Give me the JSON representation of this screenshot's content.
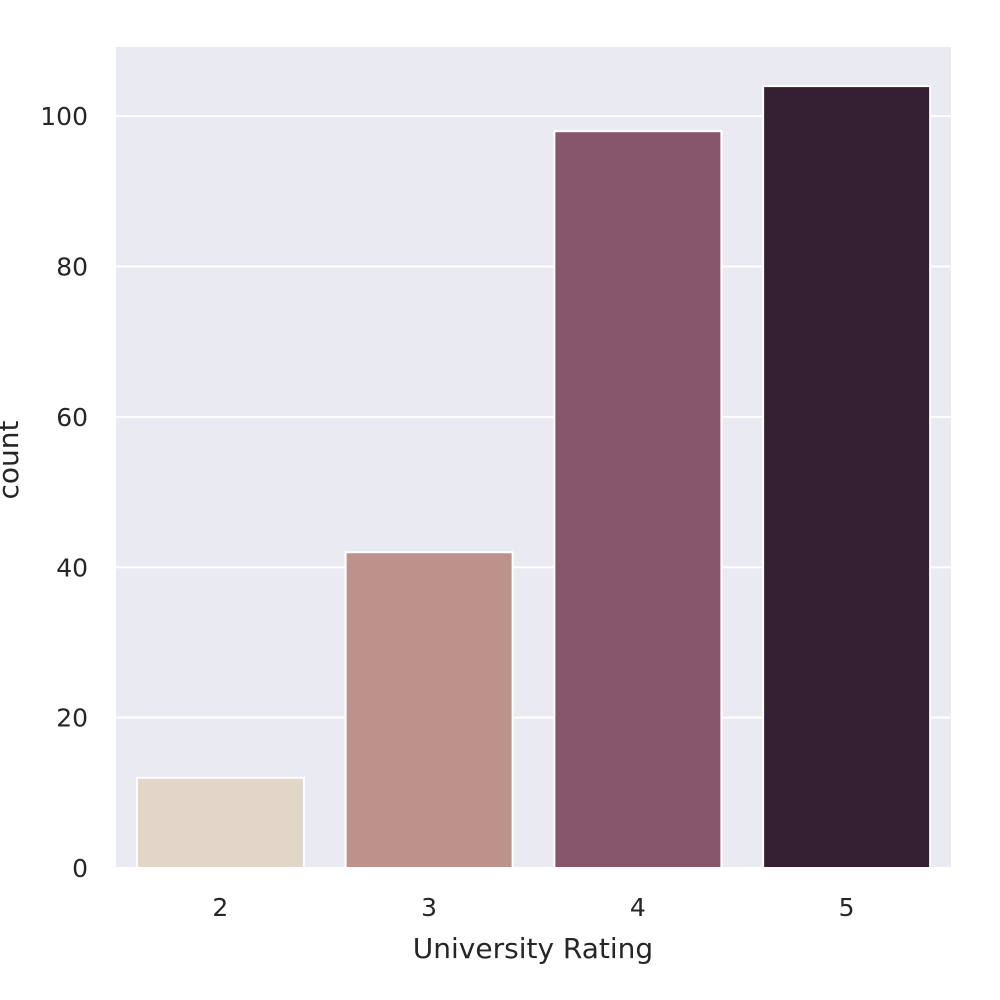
{
  "chart_data": {
    "type": "bar",
    "title": "",
    "xlabel": "University Rating",
    "ylabel": "count",
    "categories": [
      "2",
      "3",
      "4",
      "5"
    ],
    "values": [
      12,
      42,
      98,
      104
    ],
    "ylim": [
      0,
      109.2
    ],
    "yticks": [
      0,
      20,
      40,
      60,
      80,
      100
    ],
    "grid": true,
    "colors": [
      "#e2d6c9",
      "#bc928b",
      "#87566a",
      "#351f32"
    ],
    "background": "#eaeaf2",
    "grid_color": "#ffffff",
    "bar_edge_color": "#ffffff"
  }
}
